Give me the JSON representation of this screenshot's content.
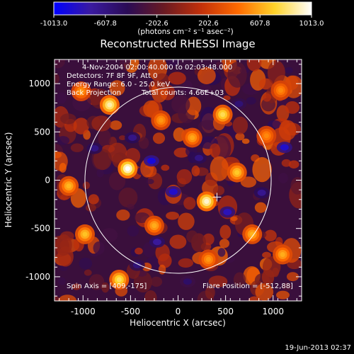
{
  "chart_data": {
    "type": "heatmap",
    "title": "Reconstructed RHESSI Image",
    "xlabel": "Heliocentric X (arcsec)",
    "ylabel": "Heliocentric Y (arcsec)",
    "xlim": [
      -1300,
      1300
    ],
    "ylim": [
      -1250,
      1250
    ],
    "xticks": [
      -1000,
      -500,
      0,
      500,
      1000
    ],
    "yticks": [
      -1000,
      -500,
      0,
      500,
      1000
    ],
    "colorbar": {
      "min": -1013.0,
      "max": 1013.0,
      "tick_values": [
        -1013.0,
        -607.8,
        -202.6,
        202.6,
        607.8,
        1013.0
      ],
      "tick_labels": [
        "-1013.0",
        "-607.8",
        "-202.6",
        "202.6",
        "607.8",
        "1013.0"
      ],
      "units_label": "(photons cm⁻² s⁻¹ asec⁻²)"
    },
    "annotations": {
      "time_range": "4-Nov-2004 02:00:40.000 to 02:03:48.000",
      "detectors": "Detectors: 7F 8F 9F, Att 0",
      "energy_range": "Energy Range: 6.0 - 25.0 keV",
      "method": "Back Projection",
      "total_counts": "Total counts: 4.66E+03",
      "spin_axis": "Spin Axis = [409,-175]",
      "flare_position": "Flare Position = [-512,88]"
    },
    "solar_limb": {
      "center": [
        0,
        0
      ],
      "radius": 980
    },
    "marker": {
      "x": 409,
      "y": -175
    },
    "hotspots": [
      {
        "x": -530,
        "y": 120,
        "v": 1013
      },
      {
        "x": 300,
        "y": -220,
        "v": 950
      },
      {
        "x": -720,
        "y": 780,
        "v": 900
      },
      {
        "x": 470,
        "y": 680,
        "v": 780
      },
      {
        "x": -620,
        "y": -1030,
        "v": 800
      },
      {
        "x": 620,
        "y": 80,
        "v": 700
      },
      {
        "x": -1150,
        "y": -60,
        "v": 650
      },
      {
        "x": -980,
        "y": -560,
        "v": 680
      },
      {
        "x": 1100,
        "y": -770,
        "v": 620
      },
      {
        "x": 150,
        "y": 440,
        "v": 600
      },
      {
        "x": -250,
        "y": -470,
        "v": 620
      },
      {
        "x": 780,
        "y": -560,
        "v": 640
      },
      {
        "x": -180,
        "y": 620,
        "v": 560
      },
      {
        "x": 320,
        "y": -820,
        "v": 560
      },
      {
        "x": 930,
        "y": 460,
        "v": 520
      },
      {
        "x": -1020,
        "y": 920,
        "v": 560
      },
      {
        "x": 1080,
        "y": 930,
        "v": 520
      }
    ],
    "coldspots": [
      {
        "x": -280,
        "y": 200,
        "v": -900
      },
      {
        "x": -50,
        "y": -120,
        "v": -850
      },
      {
        "x": 520,
        "y": -330,
        "v": -800
      },
      {
        "x": 1120,
        "y": 340,
        "v": -850
      },
      {
        "x": -220,
        "y": -640,
        "v": -700
      },
      {
        "x": 880,
        "y": -130,
        "v": -650
      },
      {
        "x": -480,
        "y": 440,
        "v": -620
      },
      {
        "x": 220,
        "y": 230,
        "v": -600
      },
      {
        "x": -880,
        "y": 330,
        "v": -600
      },
      {
        "x": 640,
        "y": 790,
        "v": -550
      },
      {
        "x": -430,
        "y": -880,
        "v": -560
      },
      {
        "x": 100,
        "y": -1050,
        "v": -500
      }
    ]
  },
  "footer": {
    "timestamp": "19-Jun-2013 02:37"
  },
  "palette_stops": [
    "#0000ff",
    "#3a1aa0",
    "#2a0b55",
    "#6a1a22",
    "#c2300a",
    "#ff6a00",
    "#ffd32a",
    "#ffffff"
  ]
}
